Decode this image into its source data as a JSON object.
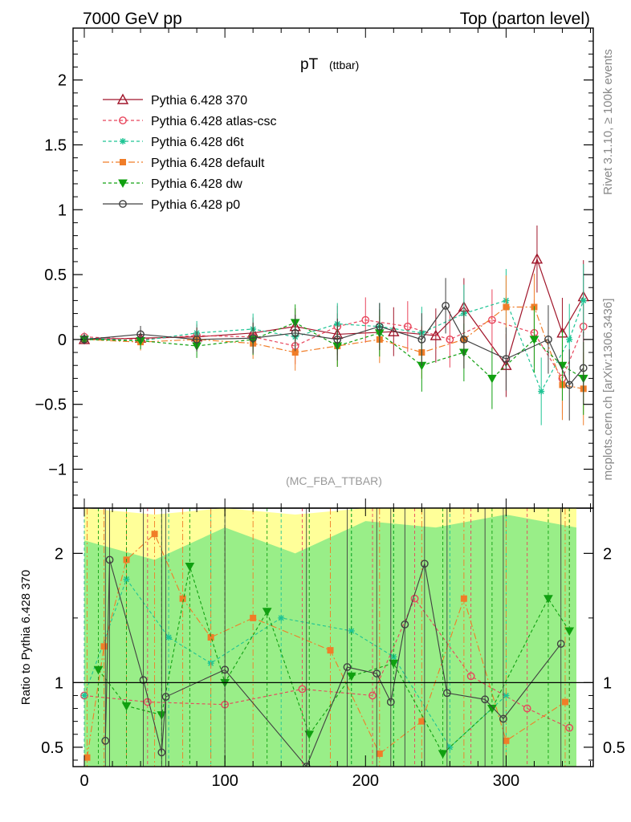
{
  "header": {
    "left": "7000 GeV pp",
    "right": "Top (parton level)"
  },
  "side_labels": {
    "rivet": "Rivet 3.1.10, ≥ 100k events",
    "mcplots": "mcplots.cern.ch [arXiv:1306.3436]"
  },
  "chart_data": [
    {
      "type": "line",
      "panel": "main",
      "title": "pT",
      "title_suffix": "(ttbar)",
      "watermark": "(MC_FBA_TTBAR)",
      "xlim": [
        -8,
        362
      ],
      "ylim": [
        -1.3,
        2.4
      ],
      "yticks": [
        -1,
        -0.5,
        0,
        0.5,
        1,
        1.5,
        2
      ],
      "ytick_labels": [
        "−1",
        "−0.5",
        "0",
        "0.5",
        "1",
        "1.5",
        "2"
      ],
      "legend_position": "top-left",
      "series": [
        {
          "name": "Pythia 6.428 370",
          "color": "#a0152a",
          "dash": "",
          "marker": "triangle-open",
          "x": [
            0,
            40,
            80,
            120,
            150,
            180,
            220,
            250,
            270,
            300,
            322,
            340,
            355
          ],
          "y": [
            0.0,
            0.01,
            0.02,
            0.05,
            0.1,
            0.04,
            0.06,
            0.03,
            0.25,
            -0.2,
            0.62,
            0.05,
            0.33
          ]
        },
        {
          "name": "Pythia 6.428 atlas-csc",
          "color": "#e8455c",
          "dash": "4,3",
          "marker": "circle-open",
          "x": [
            0,
            40,
            80,
            120,
            150,
            180,
            200,
            230,
            260,
            290,
            320,
            340,
            355
          ],
          "y": [
            0.02,
            0.0,
            0.03,
            0.02,
            -0.05,
            0.1,
            0.15,
            0.1,
            0.0,
            0.15,
            0.05,
            -0.3,
            0.1
          ]
        },
        {
          "name": "Pythia 6.428 d6t",
          "color": "#1ec494",
          "dash": "4,3",
          "marker": "star",
          "x": [
            0,
            40,
            80,
            120,
            150,
            180,
            210,
            240,
            270,
            300,
            325,
            345,
            355
          ],
          "y": [
            0.01,
            -0.01,
            0.05,
            0.08,
            0.02,
            0.12,
            0.1,
            0.05,
            0.2,
            0.3,
            -0.4,
            0.0,
            0.3
          ]
        },
        {
          "name": "Pythia 6.428 default",
          "color": "#f07d28",
          "dash": "8,3,2,3",
          "marker": "square",
          "x": [
            0,
            40,
            80,
            120,
            150,
            180,
            210,
            240,
            270,
            300,
            320,
            340,
            355
          ],
          "y": [
            0.0,
            -0.02,
            0.0,
            -0.03,
            -0.1,
            -0.05,
            0.0,
            -0.1,
            0.0,
            0.25,
            0.25,
            -0.35,
            -0.38
          ]
        },
        {
          "name": "Pythia 6.428 dw",
          "color": "#10a010",
          "dash": "4,3",
          "marker": "triangle-down",
          "x": [
            0,
            40,
            80,
            120,
            150,
            180,
            210,
            240,
            270,
            290,
            320,
            340,
            355
          ],
          "y": [
            0.0,
            -0.01,
            -0.05,
            0.0,
            0.13,
            -0.05,
            0.05,
            -0.2,
            -0.1,
            -0.3,
            0.0,
            -0.2,
            -0.3
          ]
        },
        {
          "name": "Pythia 6.428 p0",
          "color": "#404040",
          "dash": "",
          "marker": "circle-open",
          "x": [
            0,
            40,
            80,
            120,
            150,
            180,
            210,
            240,
            257,
            270,
            300,
            330,
            345,
            355
          ],
          "y": [
            0.0,
            0.04,
            0.0,
            0.01,
            0.05,
            0.0,
            0.1,
            0.0,
            0.26,
            0.0,
            -0.15,
            0.0,
            -0.35,
            -0.22
          ]
        }
      ]
    },
    {
      "type": "line",
      "panel": "ratio",
      "ylabel": "Ratio to Pythia 6.428 370",
      "xlim": [
        -8,
        362
      ],
      "ylim": [
        0.35,
        2.35
      ],
      "xticks": [
        0,
        100,
        200,
        300
      ],
      "xtick_labels": [
        "0",
        "100",
        "200",
        "300"
      ],
      "yticks": [
        0.5,
        1,
        2
      ],
      "ytick_labels": [
        "0.5",
        "1",
        "2"
      ],
      "reference_line": 1,
      "bands": [
        {
          "name": "yellow",
          "color": "#ffff99",
          "x": [
            0,
            50,
            100,
            150,
            200,
            250,
            300,
            350
          ],
          "lo": [
            0.35,
            0.35,
            0.35,
            0.35,
            0.35,
            0.35,
            0.35,
            0.35
          ],
          "hi": [
            2.35,
            2.3,
            2.35,
            2.3,
            2.35,
            2.35,
            2.35,
            2.35
          ]
        },
        {
          "name": "green",
          "color": "#99ee88",
          "x": [
            0,
            50,
            100,
            150,
            200,
            250,
            300,
            350
          ],
          "lo": [
            0.35,
            0.35,
            0.35,
            0.35,
            0.35,
            0.35,
            0.35,
            0.35
          ],
          "hi": [
            2.1,
            1.95,
            2.2,
            2.0,
            2.25,
            2.2,
            2.3,
            2.2
          ]
        }
      ],
      "series": [
        {
          "name": "Pythia 6.428 atlas-csc",
          "color": "#e8455c",
          "dash": "4,3",
          "marker": "circle-open",
          "x": [
            0,
            45,
            100,
            155,
            205,
            235,
            275,
            315,
            345
          ],
          "y": [
            0.9,
            0.85,
            0.83,
            0.95,
            0.9,
            1.65,
            1.05,
            0.8,
            0.65
          ]
        },
        {
          "name": "Pythia 6.428 d6t",
          "color": "#1ec494",
          "dash": "4,3",
          "marker": "star",
          "x": [
            0,
            30,
            60,
            90,
            140,
            190,
            220,
            260,
            300
          ],
          "y": [
            0.9,
            1.8,
            1.35,
            1.15,
            1.5,
            1.4,
            1.2,
            0.5,
            0.9
          ]
        },
        {
          "name": "Pythia 6.428 default",
          "color": "#f07d28",
          "dash": "8,3,2,3",
          "marker": "square",
          "x": [
            2,
            14,
            30,
            50,
            70,
            90,
            120,
            175,
            210,
            240,
            270,
            300,
            342
          ],
          "y": [
            0.42,
            1.28,
            1.95,
            2.15,
            1.65,
            1.35,
            1.5,
            1.25,
            0.45,
            0.7,
            1.65,
            0.55,
            0.85
          ]
        },
        {
          "name": "Pythia 6.428 dw",
          "color": "#10a010",
          "dash": "4,3",
          "marker": "triangle-down",
          "x": [
            10,
            30,
            55,
            75,
            100,
            130,
            160,
            190,
            220,
            255,
            290,
            330,
            345
          ],
          "y": [
            1.1,
            0.82,
            0.75,
            1.9,
            1.0,
            1.55,
            0.6,
            1.05,
            1.15,
            0.45,
            0.8,
            1.65,
            1.4
          ]
        },
        {
          "name": "Pythia 6.428 p0",
          "color": "#404040",
          "dash": "",
          "marker": "circle-open",
          "x": [
            15,
            18,
            42,
            55,
            58,
            100,
            158,
            187,
            208,
            218,
            228,
            242,
            258,
            285,
            298,
            339
          ],
          "y": [
            0.55,
            1.95,
            1.02,
            0.46,
            0.89,
            1.1,
            0.35,
            1.12,
            1.07,
            0.85,
            1.45,
            1.92,
            0.92,
            0.87,
            0.72,
            1.3
          ]
        }
      ]
    }
  ]
}
